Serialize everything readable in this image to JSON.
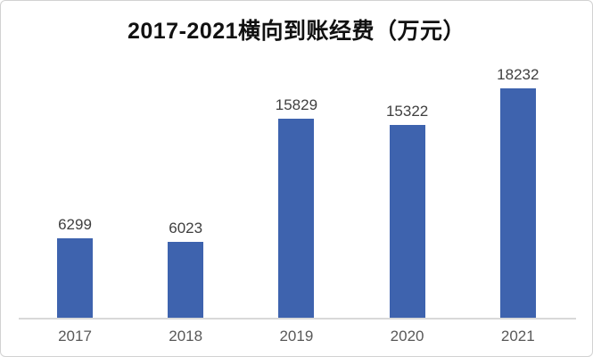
{
  "chart_data": {
    "type": "bar",
    "title": "2017-2021横向到账经费（万元）",
    "categories": [
      "2017",
      "2018",
      "2019",
      "2020",
      "2021"
    ],
    "values": [
      6299,
      6023,
      15829,
      15322,
      18232
    ],
    "series_name": "横向到账经费",
    "xlabel": "",
    "ylabel": "",
    "ylim": [
      0,
      19000
    ],
    "grid": false,
    "legend": false,
    "data_labels_shown": true,
    "colors": {
      "bar": "#3e63ae",
      "value_label": "#404040",
      "category_label": "#595959",
      "axis_line": "#d9d9d9",
      "title": "#111111",
      "card_border": "#d2d2d2",
      "background": "#ffffff"
    }
  }
}
